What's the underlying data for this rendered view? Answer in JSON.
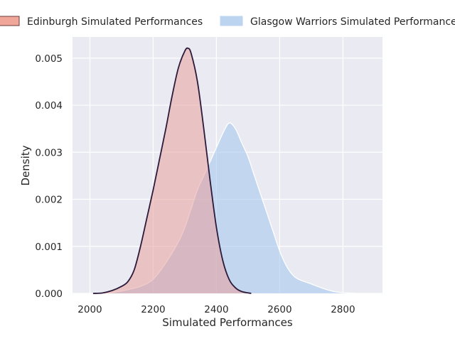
{
  "chart_data": {
    "type": "area",
    "title": "",
    "xlabel": "Simulated Performances",
    "ylabel": "Density",
    "xlim": [
      1945,
      2925
    ],
    "ylim": [
      0,
      0.00545
    ],
    "xticks": [
      2000,
      2200,
      2400,
      2600,
      2800
    ],
    "yticks": [
      0,
      0.001,
      0.002,
      0.003,
      0.004,
      0.005
    ],
    "xtick_labels": [
      "2000",
      "2200",
      "2400",
      "2600",
      "2800"
    ],
    "ytick_labels": [
      "0.000",
      "0.001",
      "0.002",
      "0.003",
      "0.004",
      "0.005"
    ],
    "grid": true,
    "legend_position": "top",
    "series": [
      {
        "name": "Edinburgh Simulated Performances",
        "fill_color": "#e8a09c",
        "line_color": "#2b1a3a",
        "points": [
          [
            2010,
            0
          ],
          [
            2040,
            1e-05
          ],
          [
            2070,
            6e-05
          ],
          [
            2100,
            0.00015
          ],
          [
            2120,
            0.00025
          ],
          [
            2140,
            0.0005
          ],
          [
            2160,
            0.001
          ],
          [
            2180,
            0.0016
          ],
          [
            2200,
            0.0022
          ],
          [
            2220,
            0.00285
          ],
          [
            2240,
            0.0035
          ],
          [
            2260,
            0.0042
          ],
          [
            2280,
            0.0048
          ],
          [
            2300,
            0.00515
          ],
          [
            2310,
            0.00521
          ],
          [
            2320,
            0.0051
          ],
          [
            2340,
            0.0045
          ],
          [
            2360,
            0.0035
          ],
          [
            2380,
            0.0024
          ],
          [
            2400,
            0.0014
          ],
          [
            2420,
            0.0007
          ],
          [
            2440,
            0.0003
          ],
          [
            2460,
            0.00012
          ],
          [
            2480,
            4e-05
          ],
          [
            2510,
            0
          ]
        ]
      },
      {
        "name": "Glasgow Warriors Simulated Performances",
        "fill_color": "#a9c8ec",
        "line_color": "#ffffff",
        "points": [
          [
            2040,
            0
          ],
          [
            2080,
            3e-05
          ],
          [
            2120,
            8e-05
          ],
          [
            2160,
            0.00015
          ],
          [
            2200,
            0.0003
          ],
          [
            2240,
            0.00065
          ],
          [
            2280,
            0.0011
          ],
          [
            2300,
            0.0014
          ],
          [
            2320,
            0.0018
          ],
          [
            2340,
            0.0022
          ],
          [
            2360,
            0.0025
          ],
          [
            2380,
            0.0028
          ],
          [
            2400,
            0.0031
          ],
          [
            2420,
            0.0034
          ],
          [
            2440,
            0.00362
          ],
          [
            2460,
            0.0035
          ],
          [
            2480,
            0.0032
          ],
          [
            2500,
            0.0029
          ],
          [
            2520,
            0.0025
          ],
          [
            2540,
            0.0021
          ],
          [
            2560,
            0.0017
          ],
          [
            2580,
            0.0013
          ],
          [
            2600,
            0.0009
          ],
          [
            2620,
            0.0006
          ],
          [
            2640,
            0.0004
          ],
          [
            2660,
            0.0003
          ],
          [
            2700,
            0.0002
          ],
          [
            2740,
            0.0001
          ],
          [
            2780,
            3e-05
          ],
          [
            2840,
            0
          ]
        ]
      }
    ]
  }
}
